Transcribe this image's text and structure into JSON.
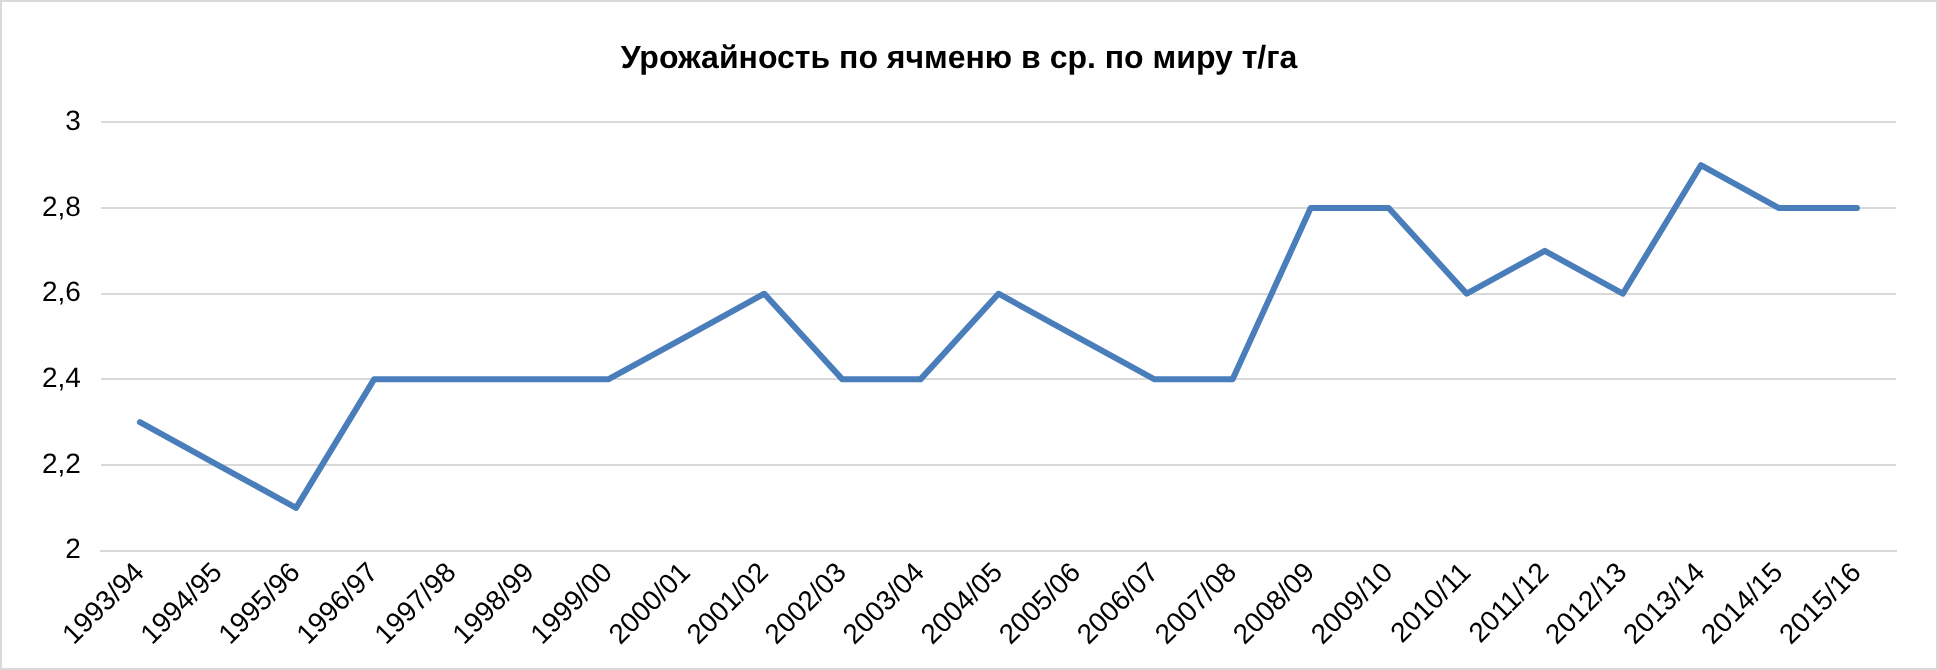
{
  "chart_data": {
    "type": "line",
    "title": "Урожайность по ячменю в ср. по миру т/га",
    "categories": [
      "1993/94",
      "1994/95",
      "1995/96",
      "1996/97",
      "1997/98",
      "1998/99",
      "1999/00",
      "2000/01",
      "2001/02",
      "2002/03",
      "2003/04",
      "2004/05",
      "2005/06",
      "2006/07",
      "2007/08",
      "2008/09",
      "2009/10",
      "2010/11",
      "2011/12",
      "2012/13",
      "2013/14",
      "2014/15",
      "2015/16"
    ],
    "series": [
      {
        "color": "#4a7ebb",
        "values": [
          2.3,
          2.2,
          2.1,
          2.4,
          2.4,
          2.4,
          2.4,
          2.5,
          2.6,
          2.4,
          2.4,
          2.6,
          2.5,
          2.4,
          2.4,
          2.8,
          2.8,
          2.6,
          2.7,
          2.6,
          2.9,
          2.8,
          2.8
        ]
      }
    ],
    "ylim": [
      2,
      3
    ],
    "yticks": [
      {
        "value": 2,
        "label": "2"
      },
      {
        "value": 2.2,
        "label": "2,2"
      },
      {
        "value": 2.4,
        "label": "2,4"
      },
      {
        "value": 2.6,
        "label": "2,6"
      },
      {
        "value": 2.8,
        "label": "2,8"
      },
      {
        "value": 3,
        "label": "3"
      }
    ],
    "grid": "y",
    "legend": false,
    "marker": "none",
    "line_style": "solid"
  }
}
